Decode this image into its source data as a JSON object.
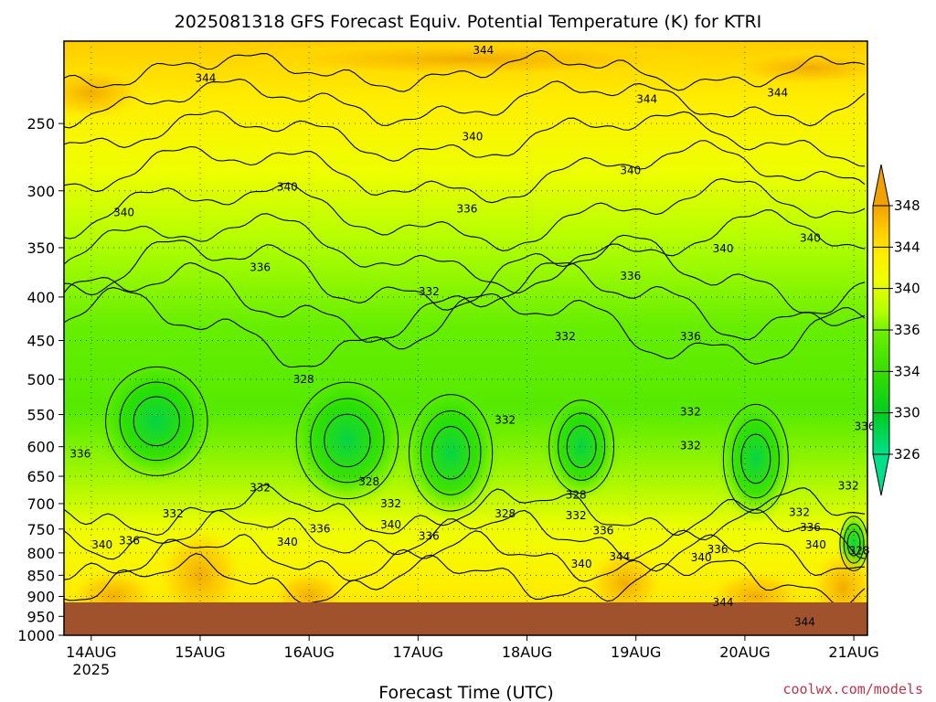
{
  "chart_data": {
    "type": "heatmap",
    "title": "2025081318 GFS Forecast Equiv. Potential Temperature (K) for KTRI",
    "xlabel": "Forecast Time (UTC)",
    "ylabel": "",
    "x_ticks": [
      "14AUG",
      "15AUG",
      "16AUG",
      "17AUG",
      "18AUG",
      "19AUG",
      "20AUG",
      "21AUG"
    ],
    "x_tick_sub": "2025",
    "y_ticks": [
      250,
      300,
      350,
      400,
      450,
      500,
      550,
      600,
      650,
      700,
      750,
      800,
      850,
      900,
      950,
      1000
    ],
    "y_scale": "log-pressure",
    "ylim": [
      1000,
      200
    ],
    "xlim_days": [
      13.75,
      21.125
    ],
    "colorbar": {
      "levels": [
        326,
        330,
        334,
        336,
        340,
        344,
        348
      ],
      "colors": [
        "#00e08a",
        "#00cc22",
        "#33dd00",
        "#66ee00",
        "#b6ff00",
        "#eeff00",
        "#ffee00",
        "#ffcc00",
        "#f0a000"
      ]
    },
    "fields": {
      "top_value": 345,
      "mid_value": 331,
      "low_value": 340
    },
    "contour_labels": [
      {
        "text": "344",
        "t": 17.6,
        "p": 205
      },
      {
        "text": "344",
        "t": 15.05,
        "p": 221
      },
      {
        "text": "344",
        "t": 19.1,
        "p": 234
      },
      {
        "text": "344",
        "t": 20.3,
        "p": 230
      },
      {
        "text": "340",
        "t": 17.5,
        "p": 259
      },
      {
        "text": "340",
        "t": 18.95,
        "p": 284
      },
      {
        "text": "340",
        "t": 15.8,
        "p": 297
      },
      {
        "text": "340",
        "t": 14.3,
        "p": 318
      },
      {
        "text": "336",
        "t": 17.45,
        "p": 315
      },
      {
        "text": "340",
        "t": 20.6,
        "p": 341
      },
      {
        "text": "340",
        "t": 19.8,
        "p": 351
      },
      {
        "text": "336",
        "t": 15.55,
        "p": 369
      },
      {
        "text": "336",
        "t": 18.95,
        "p": 378
      },
      {
        "text": "332",
        "t": 17.1,
        "p": 394
      },
      {
        "text": "332",
        "t": 18.35,
        "p": 445
      },
      {
        "text": "336",
        "t": 19.5,
        "p": 445
      },
      {
        "text": "328",
        "t": 15.95,
        "p": 500
      },
      {
        "text": "332",
        "t": 17.8,
        "p": 558
      },
      {
        "text": "332",
        "t": 19.5,
        "p": 546
      },
      {
        "text": "336",
        "t": 21.1,
        "p": 568
      },
      {
        "text": "332",
        "t": 19.5,
        "p": 598
      },
      {
        "text": "336",
        "t": 13.9,
        "p": 612
      },
      {
        "text": "328",
        "t": 16.55,
        "p": 660
      },
      {
        "text": "332",
        "t": 15.55,
        "p": 670
      },
      {
        "text": "328",
        "t": 18.45,
        "p": 684
      },
      {
        "text": "332",
        "t": 16.75,
        "p": 700
      },
      {
        "text": "332",
        "t": 20.95,
        "p": 667
      },
      {
        "text": "332",
        "t": 14.75,
        "p": 719
      },
      {
        "text": "332",
        "t": 18.45,
        "p": 723
      },
      {
        "text": "332",
        "t": 20.5,
        "p": 717
      },
      {
        "text": "340",
        "t": 16.75,
        "p": 741
      },
      {
        "text": "336",
        "t": 16.1,
        "p": 749
      },
      {
        "text": "336",
        "t": 18.7,
        "p": 753
      },
      {
        "text": "336",
        "t": 20.6,
        "p": 747
      },
      {
        "text": "328",
        "t": 17.8,
        "p": 719
      },
      {
        "text": "336",
        "t": 17.1,
        "p": 764
      },
      {
        "text": "336",
        "t": 14.35,
        "p": 774
      },
      {
        "text": "340",
        "t": 14.1,
        "p": 783
      },
      {
        "text": "340",
        "t": 15.8,
        "p": 777
      },
      {
        "text": "340",
        "t": 20.65,
        "p": 783
      },
      {
        "text": "328",
        "t": 21.05,
        "p": 795
      },
      {
        "text": "336",
        "t": 19.75,
        "p": 792
      },
      {
        "text": "344",
        "t": 18.85,
        "p": 808
      },
      {
        "text": "340",
        "t": 19.6,
        "p": 810
      },
      {
        "text": "340",
        "t": 18.5,
        "p": 824
      },
      {
        "text": "344",
        "t": 19.8,
        "p": 915
      },
      {
        "text": "344",
        "t": 20.55,
        "p": 965
      }
    ]
  },
  "credit": "coolwx.com/models"
}
